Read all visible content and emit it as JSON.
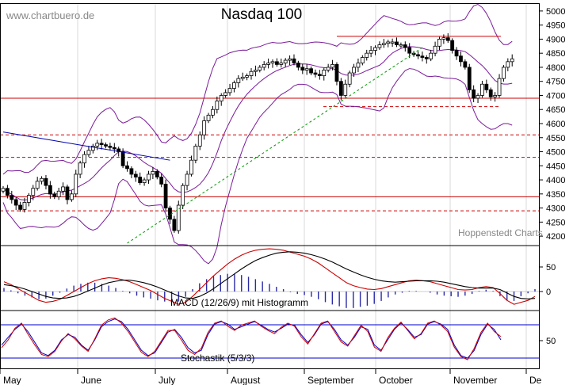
{
  "watermark": "www.chartbuero.de",
  "credit": "Hoppenstedt Charts",
  "chart_data": [
    {
      "type": "candlestick",
      "title": "Nasdaq 100",
      "x_labels": [
        "May",
        "June",
        "July",
        "August",
        "September",
        "October",
        "November",
        "De"
      ],
      "ylim": [
        4175,
        5025
      ],
      "y_ticks": [
        4200,
        4250,
        4300,
        4350,
        4400,
        4450,
        4500,
        4550,
        4600,
        4650,
        4700,
        4750,
        4800,
        4850,
        4900,
        4950,
        5000
      ],
      "close": [
        4370,
        4345,
        4330,
        4310,
        4295,
        4320,
        4345,
        4370,
        4395,
        4405,
        4380,
        4350,
        4340,
        4360,
        4375,
        4330,
        4350,
        4420,
        4460,
        4490,
        4505,
        4520,
        4530,
        4525,
        4520,
        4515,
        4510,
        4500,
        4450,
        4440,
        4420,
        4410,
        4390,
        4400,
        4420,
        4430,
        4410,
        4385,
        4300,
        4260,
        4220,
        4310,
        4380,
        4420,
        4470,
        4520,
        4560,
        4610,
        4630,
        4650,
        4680,
        4700,
        4710,
        4725,
        4745,
        4760,
        4765,
        4770,
        4785,
        4790,
        4800,
        4810,
        4815,
        4820,
        4810,
        4815,
        4825,
        4830,
        4815,
        4800,
        4790,
        4795,
        4780,
        4775,
        4770,
        4790,
        4800,
        4810,
        4750,
        4700,
        4740,
        4780,
        4800,
        4815,
        4835,
        4850,
        4860,
        4870,
        4880,
        4885,
        4890,
        4890,
        4880,
        4880,
        4870,
        4850,
        4845,
        4840,
        4835,
        4830,
        4850,
        4875,
        4900,
        4905,
        4895,
        4860,
        4840,
        4820,
        4800,
        4720,
        4690,
        4700,
        4740,
        4720,
        4695,
        4700,
        4760,
        4800,
        4820,
        4830
      ],
      "horizontal_lines": [
        4910,
        4690,
        4660,
        4560,
        4480,
        4340,
        4290
      ],
      "trendlines": [
        {
          "from": [
            0,
            4570
          ],
          "to": [
            39,
            4470
          ]
        },
        {
          "from": [
            29,
            4175
          ],
          "to": [
            98,
            4870
          ]
        }
      ]
    },
    {
      "type": "line",
      "label": "MACD (12/26/9) mit Histogramm",
      "y_ticks": [
        50,
        0
      ],
      "series": [
        {
          "color": "#cc0000",
          "values": [
            20,
            14,
            6,
            -2,
            -10,
            -18,
            -22,
            -20,
            -16,
            -8,
            0,
            8,
            16,
            22,
            26,
            28,
            27,
            24,
            20,
            14,
            8,
            2,
            -6,
            -14,
            -20,
            -26,
            -22,
            -10,
            4,
            18,
            32,
            44,
            56,
            66,
            74,
            80,
            84,
            86,
            87,
            86,
            84,
            80,
            76,
            72,
            66,
            58,
            48,
            38,
            28,
            18,
            12,
            8,
            5,
            4,
            6,
            10,
            14,
            18,
            22,
            23,
            22,
            20,
            16,
            12,
            8,
            4,
            3,
            4,
            8,
            10,
            8,
            -4,
            -18,
            -26,
            -22,
            -18,
            -10
          ]
        },
        {
          "color": "#000000",
          "values": [
            14,
            12,
            9,
            5,
            0,
            -5,
            -10,
            -13,
            -14,
            -13,
            -10,
            -5,
            1,
            7,
            13,
            18,
            21,
            23,
            23,
            21,
            18,
            14,
            9,
            3,
            -3,
            -9,
            -13,
            -14,
            -10,
            -3,
            6,
            16,
            26,
            36,
            46,
            55,
            63,
            69,
            74,
            78,
            80,
            81,
            80,
            78,
            75,
            71,
            66,
            60,
            53,
            46,
            40,
            34,
            29,
            25,
            22,
            20,
            19,
            20,
            21,
            22,
            22,
            22,
            21,
            19,
            16,
            13,
            10,
            8,
            7,
            7,
            7,
            4,
            -3,
            -10,
            -14,
            -15,
            -14
          ]
        }
      ]
    },
    {
      "type": "line",
      "label": "Stochastik (5/3/3)",
      "y_ticks": [
        50
      ],
      "series": [
        {
          "color": "#0000cc",
          "values": [
            40,
            55,
            70,
            80,
            65,
            45,
            25,
            20,
            30,
            50,
            60,
            55,
            40,
            30,
            50,
            75,
            85,
            90,
            85,
            70,
            50,
            30,
            20,
            25,
            45,
            65,
            70,
            55,
            35,
            25,
            30,
            60,
            80,
            85,
            80,
            70,
            75,
            80,
            85,
            78,
            70,
            65,
            72,
            80,
            78,
            60,
            45,
            60,
            80,
            85,
            70,
            50,
            40,
            55,
            75,
            70,
            40,
            30,
            50,
            70,
            82,
            70,
            55,
            60,
            80,
            85,
            80,
            70,
            40,
            20,
            15,
            30,
            60,
            80,
            70,
            50
          ]
        },
        {
          "color": "#cc0000",
          "values": [
            35,
            50,
            72,
            82,
            60,
            40,
            22,
            18,
            28,
            48,
            62,
            52,
            38,
            28,
            52,
            78,
            88,
            92,
            82,
            66,
            46,
            26,
            18,
            28,
            48,
            68,
            68,
            50,
            30,
            22,
            34,
            64,
            82,
            86,
            76,
            68,
            78,
            82,
            86,
            76,
            68,
            62,
            74,
            82,
            76,
            56,
            42,
            62,
            82,
            86,
            66,
            46,
            38,
            58,
            78,
            66,
            36,
            28,
            54,
            72,
            84,
            68,
            52,
            62,
            82,
            86,
            78,
            66,
            36,
            18,
            12,
            34,
            64,
            82,
            66,
            56
          ]
        }
      ]
    }
  ]
}
